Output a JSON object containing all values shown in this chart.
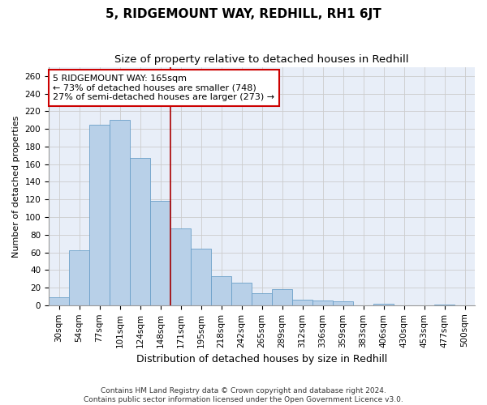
{
  "title": "5, RIDGEMOUNT WAY, REDHILL, RH1 6JT",
  "subtitle": "Size of property relative to detached houses in Redhill",
  "xlabel": "Distribution of detached houses by size in Redhill",
  "ylabel": "Number of detached properties",
  "bin_labels": [
    "30sqm",
    "54sqm",
    "77sqm",
    "101sqm",
    "124sqm",
    "148sqm",
    "171sqm",
    "195sqm",
    "218sqm",
    "242sqm",
    "265sqm",
    "289sqm",
    "312sqm",
    "336sqm",
    "359sqm",
    "383sqm",
    "406sqm",
    "430sqm",
    "453sqm",
    "477sqm",
    "500sqm"
  ],
  "bar_values": [
    9,
    62,
    205,
    210,
    167,
    118,
    87,
    64,
    33,
    26,
    14,
    18,
    6,
    5,
    4,
    0,
    2,
    0,
    0,
    1,
    0
  ],
  "bar_color": "#b8d0e8",
  "bar_edge_color": "#6a9fc8",
  "vline_color": "#aa0000",
  "vline_x": 5.5,
  "annotation_text": "5 RIDGEMOUNT WAY: 165sqm\n← 73% of detached houses are smaller (748)\n27% of semi-detached houses are larger (273) →",
  "annotation_box_color": "#ffffff",
  "annotation_box_edge": "#cc0000",
  "ylim": [
    0,
    270
  ],
  "yticks": [
    0,
    20,
    40,
    60,
    80,
    100,
    120,
    140,
    160,
    180,
    200,
    220,
    240,
    260
  ],
  "grid_color": "#cccccc",
  "background_color": "#e8eef8",
  "footnote": "Contains HM Land Registry data © Crown copyright and database right 2024.\nContains public sector information licensed under the Open Government Licence v3.0.",
  "title_fontsize": 11,
  "subtitle_fontsize": 9.5,
  "xlabel_fontsize": 9,
  "ylabel_fontsize": 8,
  "tick_fontsize": 7.5,
  "annotation_fontsize": 8,
  "footnote_fontsize": 6.5
}
